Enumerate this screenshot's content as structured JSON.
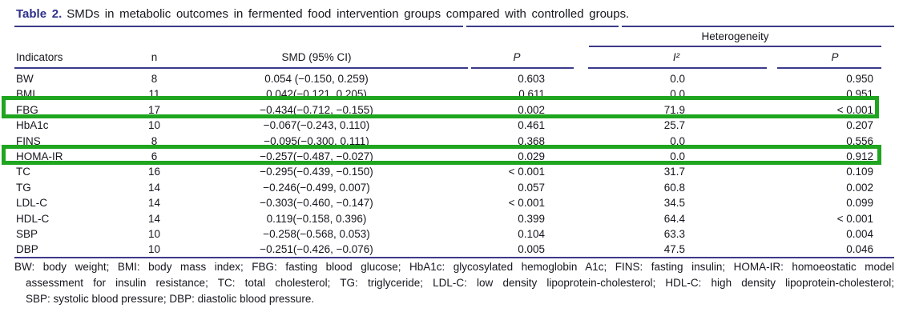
{
  "caption": {
    "label": "Table 2.",
    "text": "SMDs in metabolic outcomes in fermented food intervention groups compared with controlled groups."
  },
  "header": {
    "spanner": "Heterogeneity",
    "indicators": "Indicators",
    "n": "n",
    "smd": "SMD (95% CI)",
    "p": "P",
    "i2": "I²",
    "p_het": "P"
  },
  "table": {
    "rows": [
      {
        "indicator": "BW",
        "n": "8",
        "smd": "0.054 (−0.150, 0.259)",
        "p": "0.603",
        "i2": "0.0",
        "p_het": "0.950",
        "highlighted": false
      },
      {
        "indicator": "BMI",
        "n": "11",
        "smd": "0.042(−0.121, 0.205)",
        "p": "0.611",
        "i2": "0.0",
        "p_het": "0.951",
        "highlighted": false
      },
      {
        "indicator": "FBG",
        "n": "17",
        "smd": "−0.434(−0.712, −0.155)",
        "p": "0.002",
        "i2": "71.9",
        "p_het": "< 0.001",
        "highlighted": true
      },
      {
        "indicator": "HbA1c",
        "n": "10",
        "smd": "−0.067(−0.243, 0.110)",
        "p": "0.461",
        "i2": "25.7",
        "p_het": "0.207",
        "highlighted": false
      },
      {
        "indicator": "FINS",
        "n": "8",
        "smd": "−0.095(−0.300, 0.111)",
        "p": "0.368",
        "i2": "0.0",
        "p_het": "0.556",
        "highlighted": false
      },
      {
        "indicator": "HOMA-IR",
        "n": "6",
        "smd": "−0.257(−0.487, −0.027)",
        "p": "0.029",
        "i2": "0.0",
        "p_het": "0.912",
        "highlighted": true
      },
      {
        "indicator": "TC",
        "n": "16",
        "smd": "−0.295(−0.439, −0.150)",
        "p": "< 0.001",
        "i2": "31.7",
        "p_het": "0.109",
        "highlighted": false
      },
      {
        "indicator": "TG",
        "n": "14",
        "smd": "−0.246(−0.499, 0.007)",
        "p": "0.057",
        "i2": "60.8",
        "p_het": "0.002",
        "highlighted": false
      },
      {
        "indicator": "LDL-C",
        "n": "14",
        "smd": "−0.303(−0.460, −0.147)",
        "p": "< 0.001",
        "i2": "34.5",
        "p_het": "0.099",
        "highlighted": false
      },
      {
        "indicator": "HDL-C",
        "n": "14",
        "smd": "0.119(−0.158, 0.396)",
        "p": "0.399",
        "i2": "64.4",
        "p_het": "< 0.001",
        "highlighted": false
      },
      {
        "indicator": "SBP",
        "n": "10",
        "smd": "−0.258(−0.568, 0.053)",
        "p": "0.104",
        "i2": "63.3",
        "p_het": "0.004",
        "highlighted": false
      },
      {
        "indicator": "DBP",
        "n": "10",
        "smd": "−0.251(−0.426, −0.076)",
        "p": "0.005",
        "i2": "47.5",
        "p_het": "0.046",
        "highlighted": false
      }
    ]
  },
  "highlights": {
    "rows": [
      "FBG",
      "HOMA-IR"
    ]
  },
  "footnote": {
    "lines": [
      "BW: body weight; BMI: body mass index; FBG: fasting blood glucose; HbA1c: glycosylated hemoglobin A1c; FINS: fasting insulin; HOMA-IR: homoeostatic model",
      "assessment for insulin resistance; TC: total cholesterol; TG: triglyceride; LDL-C: low density lipoprotein-cholesterol; HDL-C: high density lipoprotein-cholesterol;",
      "SBP: systolic blood pressure; DBP: diastolic blood pressure."
    ]
  },
  "colors": {
    "highlight_green": "#1fa51f",
    "rule_navy": "#3b3b8a",
    "caption_navy": "#2d3089",
    "text": "#16161e"
  }
}
